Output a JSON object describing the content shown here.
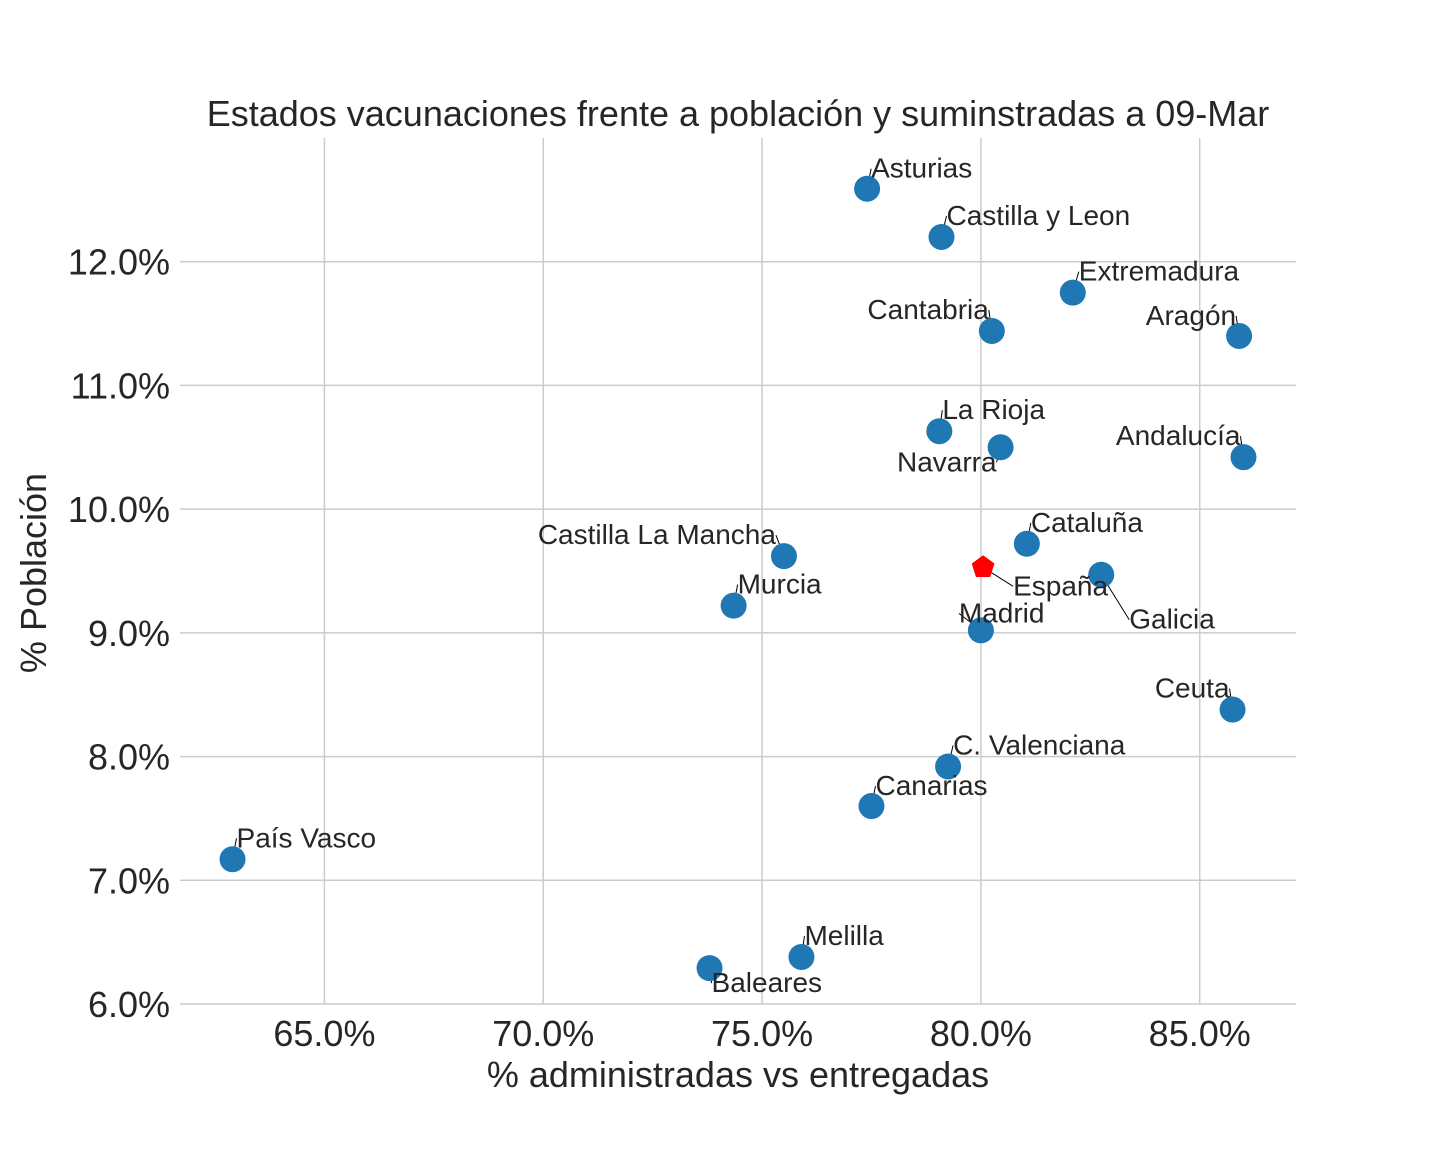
{
  "chart_data": {
    "type": "scatter",
    "title": "Estados vacunaciones frente a población y suminstradas a 09-Mar",
    "xlabel": "% administradas vs entregadas",
    "ylabel": "% Población",
    "xlim": [
      61.7,
      87.2
    ],
    "ylim": [
      6.0,
      13.0
    ],
    "x_ticks": [
      65,
      70,
      75,
      80,
      85
    ],
    "x_tick_labels": [
      "65.0%",
      "70.0%",
      "75.0%",
      "80.0%",
      "85.0%"
    ],
    "y_ticks": [
      6,
      7,
      8,
      9,
      10,
      11,
      12
    ],
    "y_tick_labels": [
      "6.0%",
      "7.0%",
      "8.0%",
      "9.0%",
      "10.0%",
      "11.0%",
      "12.0%"
    ],
    "grid": true,
    "colors": {
      "point": "#1f77b4",
      "highlight": "#ff0000"
    },
    "points": [
      {
        "name": "Asturias",
        "x": 77.4,
        "y": 12.59
      },
      {
        "name": "Castilla y Leon",
        "x": 79.1,
        "y": 12.2
      },
      {
        "name": "Extremadura",
        "x": 82.1,
        "y": 11.75
      },
      {
        "name": "Cantabria",
        "x": 80.25,
        "y": 11.44
      },
      {
        "name": "Aragón",
        "x": 85.9,
        "y": 11.4
      },
      {
        "name": "La Rioja",
        "x": 79.05,
        "y": 10.63
      },
      {
        "name": "Navarra",
        "x": 80.45,
        "y": 10.5
      },
      {
        "name": "Andalucía",
        "x": 86.0,
        "y": 10.42
      },
      {
        "name": "Cataluña",
        "x": 81.05,
        "y": 9.72
      },
      {
        "name": "Castilla La Mancha",
        "x": 75.5,
        "y": 9.62
      },
      {
        "name": "Galicia",
        "x": 82.75,
        "y": 9.47
      },
      {
        "name": "Murcia",
        "x": 74.35,
        "y": 9.22
      },
      {
        "name": "Madrid",
        "x": 80.0,
        "y": 9.02
      },
      {
        "name": "Ceuta",
        "x": 85.75,
        "y": 8.38
      },
      {
        "name": "C. Valenciana",
        "x": 79.25,
        "y": 7.92
      },
      {
        "name": "Canarias",
        "x": 77.5,
        "y": 7.6
      },
      {
        "name": "País Vasco",
        "x": 62.9,
        "y": 7.17
      },
      {
        "name": "Melilla",
        "x": 75.9,
        "y": 6.38
      },
      {
        "name": "Baleares",
        "x": 73.8,
        "y": 6.29
      }
    ],
    "highlight": {
      "name": "España",
      "x": 80.05,
      "y": 9.53
    }
  }
}
